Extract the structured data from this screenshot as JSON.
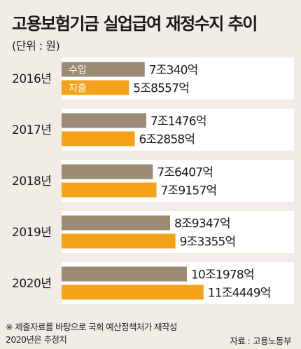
{
  "chart_data": {
    "type": "bar",
    "orientation": "horizontal",
    "title": "고용보험기금 실업급여 재정수지 추이",
    "unit_label": "(단위 : 원)",
    "categories": [
      "2016년",
      "2017년",
      "2018년",
      "2019년",
      "2020년"
    ],
    "series": [
      {
        "name": "수입",
        "color": "#9b8a74",
        "values": [
          7.034,
          7.1476,
          7.6407,
          8.9347,
          10.1978
        ],
        "labels": [
          "7조340억",
          "7조1476억",
          "7조6407억",
          "8조9347억",
          "10조1978억"
        ]
      },
      {
        "name": "지출",
        "color": "#f5a21b",
        "values": [
          5.8557,
          6.2858,
          7.9157,
          9.3355,
          11.4449
        ],
        "labels": [
          "5조8557억",
          "6조2858억",
          "7조9157억",
          "9조3355억",
          "11조4449억"
        ]
      }
    ],
    "background_color": "#f1ede6",
    "band_color": "#ffffff",
    "legend_placement": "inside-first-bars",
    "grid": false
  },
  "footnote": {
    "line1": "※ 제출자료를 바탕으로 국회 예산정책처가 재작성",
    "line2": "2020년은 추정치"
  },
  "source": "자료 : 고용노동부"
}
